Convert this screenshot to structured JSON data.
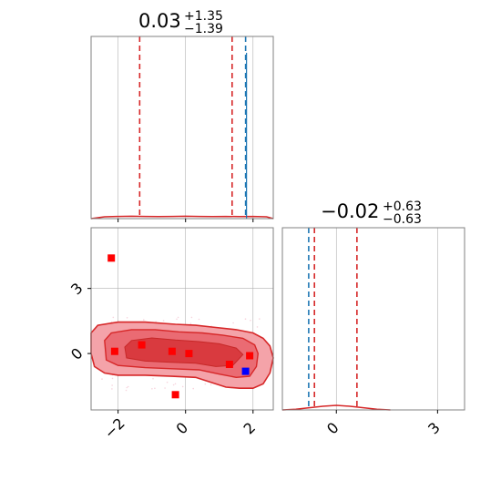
{
  "chart_data": {
    "type": "scatter",
    "layout": "corner-plot",
    "grid": true,
    "colors": {
      "samples": "#d62728",
      "truth_line": "#1f77b4",
      "marker_red": "#ff0000",
      "marker_blue": "#0000ff",
      "grid": "#b0b0b0",
      "axes": "#808080"
    },
    "params": [
      {
        "title": {
          "median": "0.03",
          "plus": "+1.35",
          "minus": "−1.39"
        },
        "xlim": [
          -2.8,
          2.6
        ],
        "xticks": [
          "−2",
          "0",
          "2"
        ],
        "quantiles": [
          -1.36,
          0.03,
          1.38
        ],
        "truth": 1.78
      },
      {
        "title": {
          "median": "−0.02",
          "plus": "+0.63",
          "minus": "−0.63"
        },
        "xlim": [
          -1.6,
          3.8
        ],
        "xticks": [
          "0",
          "3"
        ],
        "quantiles": [
          -0.65,
          -0.02,
          0.61
        ],
        "truth": -0.82,
        "yticks": [
          "0",
          "3"
        ]
      }
    ],
    "joint": {
      "xlim": [
        -2.8,
        2.6
      ],
      "ylim": [
        -2.6,
        5.8
      ],
      "red_points": [
        [
          -2.2,
          4.4
        ],
        [
          -2.1,
          0.1
        ],
        [
          -1.3,
          0.4
        ],
        [
          -0.4,
          0.1
        ],
        [
          -0.3,
          -1.9
        ],
        [
          0.1,
          0.0
        ],
        [
          1.3,
          -0.5
        ],
        [
          1.9,
          -0.1
        ]
      ],
      "blue_points": [
        [
          1.78,
          -0.82
        ]
      ]
    },
    "contours": {
      "outer_upper": [
        [
          -2.8,
          0.95
        ],
        [
          -2.6,
          1.3
        ],
        [
          -2.0,
          1.45
        ],
        [
          -1.2,
          1.45
        ],
        [
          -0.3,
          1.35
        ],
        [
          0.3,
          1.3
        ],
        [
          0.9,
          1.2
        ],
        [
          1.5,
          1.1
        ],
        [
          2.0,
          0.95
        ],
        [
          2.3,
          0.7
        ],
        [
          2.5,
          0.35
        ],
        [
          2.6,
          -0.2
        ]
      ],
      "outer_lower": [
        [
          -2.8,
          0.0
        ],
        [
          -2.7,
          -0.6
        ],
        [
          -2.4,
          -0.9
        ],
        [
          -2.0,
          -1.0
        ],
        [
          -1.2,
          -1.0
        ],
        [
          -0.4,
          -1.05
        ],
        [
          0.3,
          -1.1
        ],
        [
          0.8,
          -1.35
        ],
        [
          1.2,
          -1.55
        ],
        [
          1.6,
          -1.6
        ],
        [
          2.0,
          -1.6
        ],
        [
          2.3,
          -1.4
        ],
        [
          2.5,
          -0.9
        ],
        [
          2.6,
          -0.2
        ]
      ],
      "mid_upper": [
        [
          -2.4,
          0.6
        ],
        [
          -2.2,
          0.95
        ],
        [
          -1.6,
          1.1
        ],
        [
          -0.9,
          1.1
        ],
        [
          -0.2,
          1.0
        ],
        [
          0.5,
          0.95
        ],
        [
          1.1,
          0.85
        ],
        [
          1.7,
          0.7
        ],
        [
          2.05,
          0.4
        ],
        [
          2.15,
          0.0
        ]
      ],
      "mid_lower": [
        [
          -2.4,
          0.6
        ],
        [
          -2.35,
          -0.3
        ],
        [
          -2.0,
          -0.55
        ],
        [
          -1.2,
          -0.65
        ],
        [
          -0.4,
          -0.7
        ],
        [
          0.4,
          -0.75
        ],
        [
          1.0,
          -0.95
        ],
        [
          1.5,
          -1.1
        ],
        [
          1.9,
          -1.05
        ],
        [
          2.1,
          -0.6
        ],
        [
          2.15,
          0.0
        ]
      ],
      "inner_upper": [
        [
          -1.8,
          0.3
        ],
        [
          -1.6,
          0.6
        ],
        [
          -1.0,
          0.72
        ],
        [
          -0.3,
          0.62
        ],
        [
          0.4,
          0.55
        ],
        [
          1.0,
          0.45
        ],
        [
          1.5,
          0.25
        ],
        [
          1.7,
          -0.05
        ]
      ],
      "inner_lower": [
        [
          -1.8,
          0.3
        ],
        [
          -1.75,
          -0.2
        ],
        [
          -1.2,
          -0.35
        ],
        [
          -0.5,
          -0.4
        ],
        [
          0.3,
          -0.45
        ],
        [
          0.9,
          -0.6
        ],
        [
          1.4,
          -0.55
        ],
        [
          1.7,
          -0.05
        ]
      ]
    },
    "hist1": {
      "x": [
        -2.8,
        -2.4,
        -2.0,
        -1.6,
        -1.2,
        -0.8,
        -0.4,
        0.0,
        0.4,
        0.8,
        1.2,
        1.6,
        2.0,
        2.4,
        2.6
      ],
      "y": [
        0,
        0.01,
        0.012,
        0.013,
        0.012,
        0.011,
        0.012,
        0.013,
        0.012,
        0.011,
        0.012,
        0.011,
        0.012,
        0.01,
        0
      ],
      "ymax": 1.0
    },
    "hist2": {
      "x": [
        -1.6,
        -1.2,
        -0.8,
        -0.4,
        0.0,
        0.4,
        0.8,
        1.2,
        1.6
      ],
      "y": [
        0,
        0.004,
        0.012,
        0.02,
        0.025,
        0.02,
        0.012,
        0.004,
        0
      ],
      "ymax": 1.0
    }
  }
}
